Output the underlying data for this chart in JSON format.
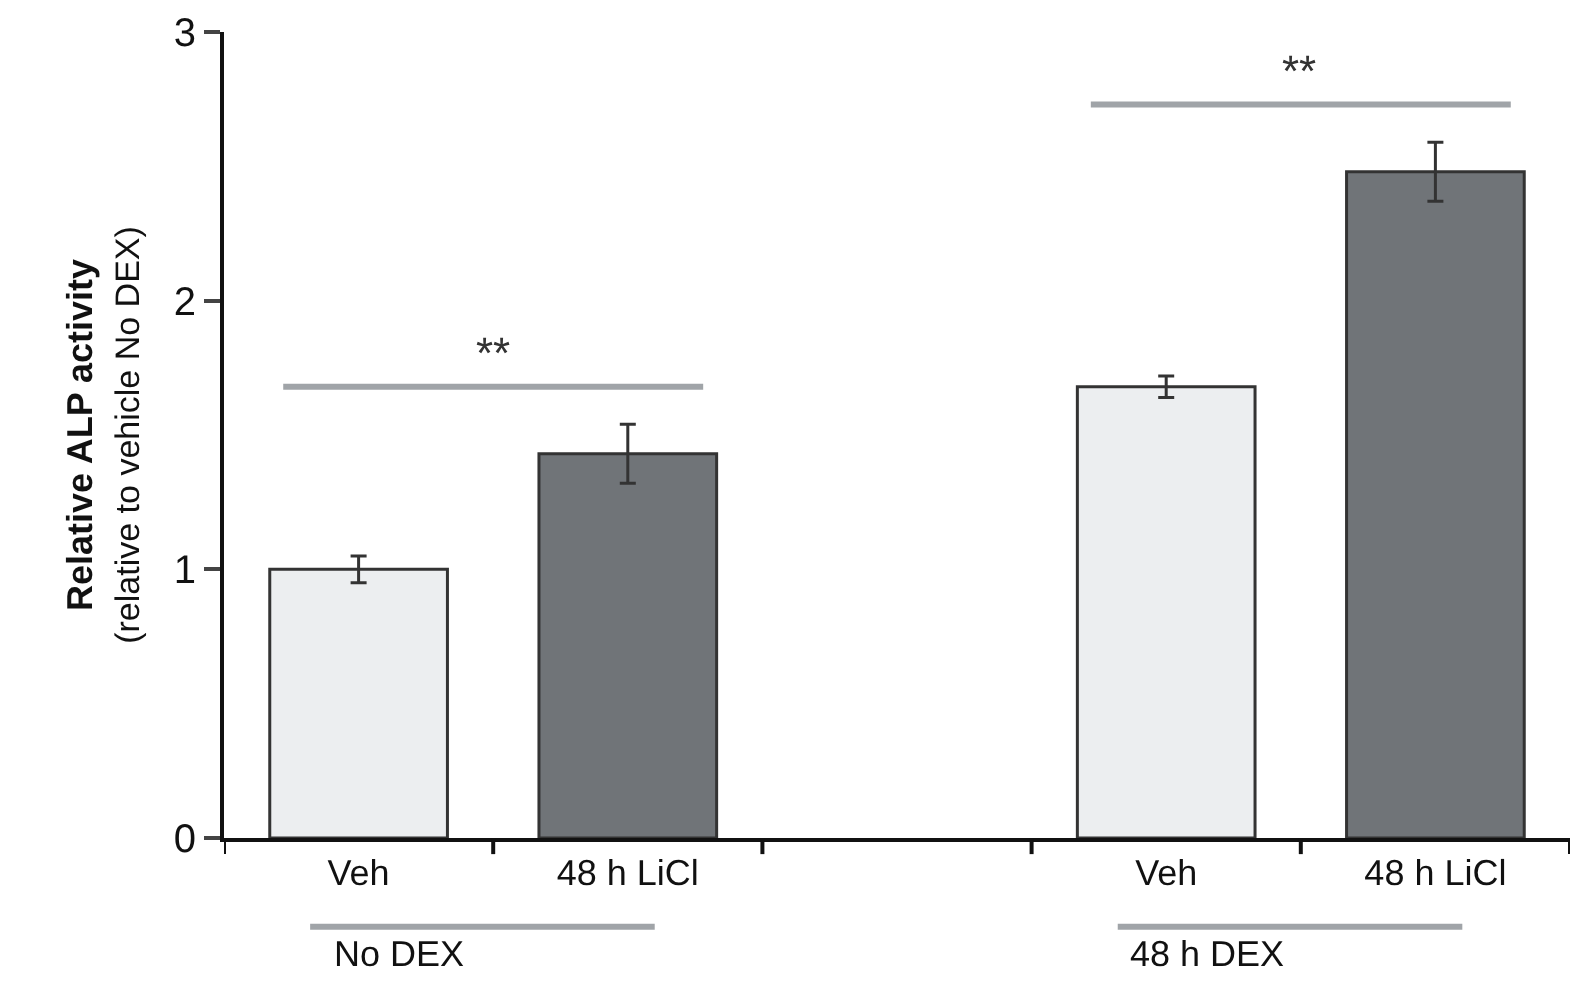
{
  "chart_data": {
    "type": "bar",
    "ylabel": "Relative ALP activity\n(relative to vehicle No DEX)",
    "categories": [
      "Veh",
      "48 h LiCl",
      null,
      "Veh",
      "48 h LiCl"
    ],
    "values": [
      1.0,
      1.43,
      null,
      1.68,
      2.48
    ],
    "errors": [
      0.05,
      0.11,
      null,
      0.04,
      0.11
    ],
    "colors": [
      "#eceef0",
      "#707478",
      null,
      "#eceef0",
      "#707478"
    ],
    "ylim": [
      0,
      3
    ],
    "yticks": [
      0,
      1,
      2,
      3
    ],
    "grid": false,
    "annotations": [
      "**",
      "**",
      "No DEX",
      "48 h DEX"
    ]
  }
}
